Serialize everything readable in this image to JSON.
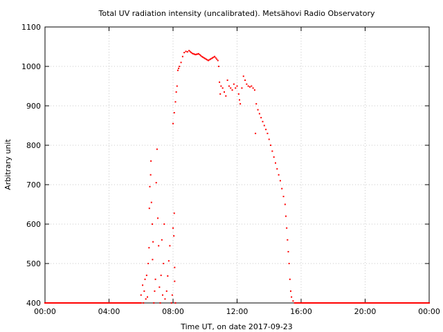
{
  "chart_data": {
    "type": "scatter",
    "title": "Total UV radiation intensity (uncalibrated). Metsähovi Radio Observatory",
    "xlabel": "Time UT, on date 2017-09-23",
    "ylabel": "Arbitrary unit",
    "xlim": [
      "00:00",
      "24:00"
    ],
    "ylim": [
      400,
      1100
    ],
    "x_ticks": [
      "00:00",
      "04:00",
      "08:00",
      "12:00",
      "16:00",
      "20:00",
      "00:00"
    ],
    "y_ticks": [
      400,
      500,
      600,
      700,
      800,
      900,
      1000,
      1100
    ],
    "grid": true,
    "marker_color": "#ff0000",
    "x_unit": "hours UT",
    "series": [
      {
        "points": [
          [
            0.0,
            400
          ],
          [
            6.0,
            400
          ],
          [
            6.0,
            420
          ],
          [
            6.1,
            445
          ],
          [
            6.15,
            400
          ],
          [
            6.2,
            430
          ],
          [
            6.25,
            460
          ],
          [
            6.3,
            410
          ],
          [
            6.35,
            470
          ],
          [
            6.4,
            415
          ],
          [
            6.45,
            500
          ],
          [
            6.5,
            540
          ],
          [
            6.52,
            640
          ],
          [
            6.55,
            695
          ],
          [
            6.6,
            725
          ],
          [
            6.62,
            760
          ],
          [
            6.65,
            655
          ],
          [
            6.7,
            600
          ],
          [
            6.72,
            510
          ],
          [
            6.75,
            555
          ],
          [
            6.8,
            400
          ],
          [
            6.85,
            430
          ],
          [
            6.9,
            460
          ],
          [
            6.95,
            705
          ],
          [
            7.0,
            790
          ],
          [
            7.05,
            615
          ],
          [
            7.1,
            545
          ],
          [
            7.15,
            440
          ],
          [
            7.2,
            400
          ],
          [
            7.25,
            470
          ],
          [
            7.3,
            560
          ],
          [
            7.35,
            420
          ],
          [
            7.4,
            500
          ],
          [
            7.45,
            600
          ],
          [
            7.5,
            410
          ],
          [
            7.6,
            430
          ],
          [
            7.8,
            545
          ],
          [
            7.9,
            400
          ],
          [
            7.95,
            420
          ],
          [
            8.0,
            590
          ],
          [
            8.05,
            570
          ],
          [
            8.1,
            490
          ],
          [
            8.1,
            455
          ],
          [
            8.15,
            400
          ],
          [
            8.0,
            855
          ],
          [
            8.15,
            910
          ],
          [
            8.2,
            935
          ],
          [
            8.25,
            950
          ],
          [
            8.3,
            990
          ],
          [
            8.35,
            995
          ],
          [
            8.4,
            1000
          ],
          [
            8.5,
            1010
          ],
          [
            8.6,
            1025
          ],
          [
            8.7,
            1035
          ],
          [
            8.8,
            1038
          ],
          [
            8.9,
            1037
          ],
          [
            9.0,
            1040
          ],
          [
            9.2,
            1033
          ],
          [
            9.4,
            1030
          ],
          [
            9.6,
            1032
          ],
          [
            9.8,
            1025
          ],
          [
            10.0,
            1020
          ],
          [
            10.2,
            1015
          ],
          [
            10.4,
            1020
          ],
          [
            10.6,
            1025
          ],
          [
            10.8,
            1015
          ],
          [
            10.85,
            1000
          ],
          [
            10.9,
            960
          ],
          [
            10.95,
            930
          ],
          [
            11.0,
            950
          ],
          [
            11.1,
            945
          ],
          [
            11.2,
            935
          ],
          [
            11.3,
            925
          ],
          [
            11.4,
            965
          ],
          [
            11.5,
            950
          ],
          [
            11.6,
            945
          ],
          [
            11.7,
            940
          ],
          [
            11.8,
            955
          ],
          [
            11.9,
            945
          ],
          [
            12.0,
            950
          ],
          [
            12.1,
            930
          ],
          [
            12.15,
            915
          ],
          [
            12.2,
            905
          ],
          [
            12.3,
            945
          ],
          [
            12.4,
            975
          ],
          [
            12.5,
            965
          ],
          [
            12.6,
            955
          ],
          [
            12.7,
            950
          ],
          [
            12.8,
            948
          ],
          [
            12.9,
            950
          ],
          [
            13.0,
            945
          ],
          [
            13.1,
            940
          ],
          [
            13.15,
            830
          ],
          [
            13.2,
            905
          ],
          [
            13.3,
            890
          ],
          [
            13.4,
            880
          ],
          [
            13.5,
            870
          ],
          [
            13.6,
            860
          ],
          [
            13.7,
            850
          ],
          [
            13.8,
            840
          ],
          [
            13.9,
            830
          ],
          [
            14.0,
            815
          ],
          [
            14.1,
            800
          ],
          [
            14.2,
            785
          ],
          [
            14.3,
            770
          ],
          [
            14.4,
            755
          ],
          [
            14.5,
            740
          ],
          [
            14.6,
            725
          ],
          [
            14.7,
            710
          ],
          [
            14.8,
            690
          ],
          [
            14.9,
            670
          ],
          [
            15.0,
            650
          ],
          [
            15.05,
            620
          ],
          [
            15.1,
            590
          ],
          [
            15.15,
            560
          ],
          [
            15.2,
            530
          ],
          [
            15.25,
            500
          ],
          [
            15.3,
            460
          ],
          [
            15.35,
            430
          ],
          [
            15.4,
            415
          ],
          [
            15.5,
            405
          ],
          [
            15.6,
            400
          ],
          [
            16.0,
            400
          ],
          [
            24.0,
            400
          ]
        ]
      }
    ]
  }
}
